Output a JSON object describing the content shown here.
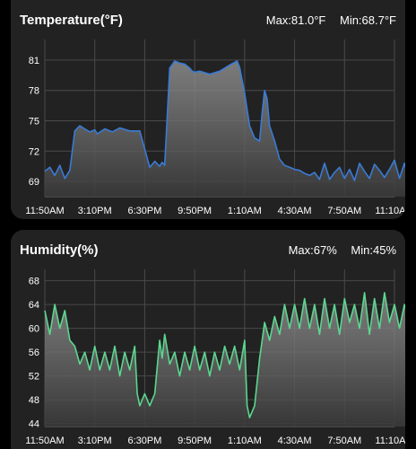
{
  "cards": [
    {
      "title": "Temperature(°F)",
      "max_label": "Max:81.0°F",
      "min_label": "Min:68.7°F"
    },
    {
      "title": "Humidity(%)",
      "max_label": "Max:67%",
      "min_label": "Min:45%"
    }
  ],
  "chart_data": [
    {
      "type": "area",
      "title": "Temperature(°F)",
      "x_ticks": [
        "11:50AM",
        "3:10PM",
        "6:30PM",
        "9:50PM",
        "1:10AM",
        "4:30AM",
        "7:50AM",
        "11:10AM"
      ],
      "y_ticks": [
        69,
        72,
        75,
        78,
        81
      ],
      "ylim": [
        67.5,
        82.5
      ],
      "grid": true,
      "line_color": "#3a7bd5",
      "series": [
        {
          "x": [
            0,
            0.1,
            0.2,
            0.3,
            0.4,
            0.5,
            0.6,
            0.7,
            0.8,
            0.9,
            1.0,
            1.05,
            1.2,
            1.35,
            1.5,
            1.7,
            1.9,
            2.1,
            2.2,
            2.3,
            2.35,
            2.4,
            2.5,
            2.6,
            2.7,
            2.8,
            2.9,
            2.95,
            3.0,
            3.1,
            3.3,
            3.5,
            3.7,
            3.85,
            3.9,
            4.0,
            4.1,
            4.2,
            4.3,
            4.35,
            4.4,
            4.45,
            4.5,
            4.6,
            4.7,
            4.8,
            4.9,
            5.0,
            5.1,
            5.2,
            5.3,
            5.4,
            5.5,
            5.6,
            5.7,
            5.8,
            5.9,
            6.0,
            6.1,
            6.2,
            6.3,
            6.4,
            6.5,
            6.6,
            6.7,
            6.8,
            6.9,
            7.0,
            7.1,
            7.2,
            7.3,
            7.35
          ],
          "y": [
            70,
            70.4,
            69.6,
            70.6,
            69.3,
            70.1,
            74,
            74.5,
            74.2,
            73.9,
            74.1,
            73.7,
            74.2,
            73.9,
            74.3,
            74,
            74,
            70.4,
            71,
            70.5,
            70.9,
            70.6,
            80.2,
            80.9,
            80.7,
            80.6,
            80.2,
            79.9,
            79.8,
            79.9,
            79.6,
            79.9,
            80.5,
            80.9,
            80.3,
            77.7,
            74.5,
            73.3,
            73,
            75.8,
            78,
            77.2,
            74.5,
            73,
            71.2,
            70.6,
            70.4,
            70.2,
            70.1,
            69.8,
            69.6,
            69.9,
            69.2,
            70.8,
            69.2,
            69.9,
            70.4,
            69.3,
            70.2,
            69.1,
            70.8,
            70,
            69.3,
            70.7,
            70.1,
            69.4,
            70.2,
            71.1,
            69.3,
            70.8,
            69,
            70.5
          ]
        }
      ]
    },
    {
      "type": "area",
      "title": "Humidity(%)",
      "x_ticks": [
        "11:50AM",
        "3:10PM",
        "6:30PM",
        "9:50PM",
        "1:10AM",
        "4:30AM",
        "7:50AM",
        "11:10AM"
      ],
      "y_ticks": [
        44,
        48,
        52,
        56,
        60,
        64,
        68
      ],
      "ylim": [
        43.5,
        69
      ],
      "grid": true,
      "line_color": "#5cd68f",
      "series": [
        {
          "x": [
            0,
            0.1,
            0.2,
            0.3,
            0.4,
            0.5,
            0.6,
            0.7,
            0.8,
            0.9,
            1.0,
            1.1,
            1.2,
            1.3,
            1.4,
            1.5,
            1.6,
            1.7,
            1.8,
            1.85,
            1.9,
            2.0,
            2.1,
            2.2,
            2.3,
            2.35,
            2.4,
            2.5,
            2.6,
            2.7,
            2.8,
            2.9,
            3.0,
            3.1,
            3.2,
            3.3,
            3.4,
            3.5,
            3.6,
            3.7,
            3.8,
            3.9,
            4.0,
            4.05,
            4.1,
            4.2,
            4.3,
            4.35,
            4.4,
            4.5,
            4.6,
            4.7,
            4.8,
            4.9,
            5.0,
            5.1,
            5.2,
            5.3,
            5.4,
            5.5,
            5.6,
            5.7,
            5.8,
            5.9,
            6.0,
            6.1,
            6.2,
            6.3,
            6.4,
            6.5,
            6.6,
            6.7,
            6.8,
            6.9,
            7.0,
            7.1,
            7.2,
            7.3,
            7.35
          ],
          "y": [
            63,
            59,
            64,
            60,
            63,
            58,
            57,
            54,
            56,
            53,
            57,
            53,
            56,
            53,
            57,
            52,
            56,
            53,
            57,
            49,
            47,
            49,
            47,
            49,
            58,
            55,
            59,
            54,
            56,
            52,
            56,
            53,
            57,
            53,
            56,
            52,
            56,
            53,
            57,
            54,
            57,
            53,
            58,
            47,
            45,
            47,
            55,
            58,
            61,
            58,
            62,
            59,
            64,
            60,
            64,
            60,
            65,
            60,
            64,
            59,
            65,
            60,
            64,
            59,
            65,
            61,
            64,
            60,
            66,
            59,
            65,
            60,
            66,
            61,
            64,
            60,
            64,
            61,
            65
          ]
        }
      ]
    }
  ]
}
